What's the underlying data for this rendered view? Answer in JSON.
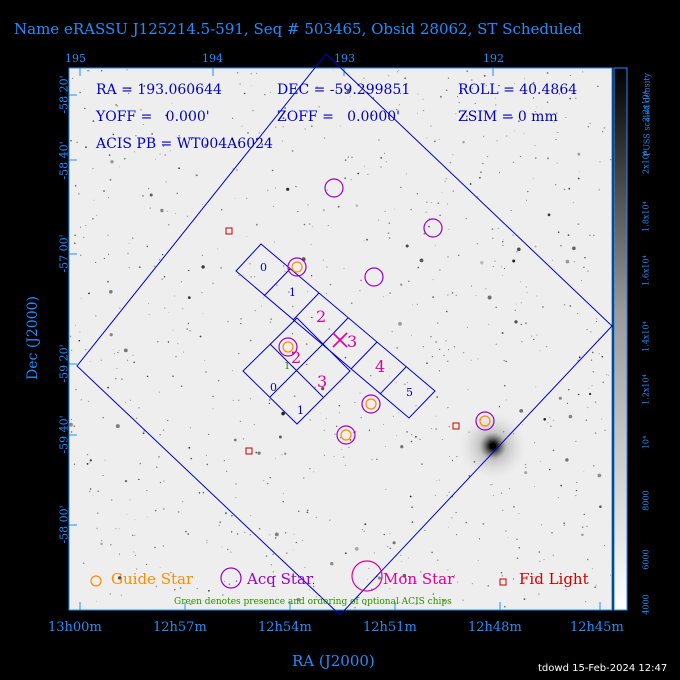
{
  "title": "Name eRASSU J125214.5-591, Seq # 503465, Obsid 28062, ST Scheduled",
  "info": {
    "ra": "RA = 193.060644",
    "dec": "DEC = -59.299851",
    "roll": "ROLL = 40.4864",
    "yoff": "YOFF =   0.000'",
    "zoff": "ZOFF =   0.0000'",
    "zsim": "ZSIM = 0 mm",
    "acis_pb": "ACIS PB = WT004A6024"
  },
  "top_axis": {
    "ticks": [
      "195",
      "194",
      "193",
      "192"
    ]
  },
  "bottom_axis": {
    "label": "RA (J2000)",
    "ticks": [
      "13h00m",
      "12h57m",
      "12h54m",
      "12h51m",
      "12h48m",
      "12h45m"
    ]
  },
  "left_axis": {
    "label": "Dec (J2000)",
    "ticks": [
      "-58 20'",
      "-58 40'",
      "-57 00'",
      "-59 20'",
      "-59 40'",
      "-58 00'"
    ]
  },
  "colorbar": {
    "label": "PUSS scaled density",
    "ticks": [
      "4000",
      "6000",
      "8000",
      "10⁴",
      "1.2x10⁴",
      "1.4x10⁴",
      "1.6x10⁴",
      "1.8x10⁴",
      "2x10⁴",
      "2.2x10⁴"
    ]
  },
  "chips": {
    "row1": [
      "0",
      "1",
      "2",
      "3",
      "4",
      "5"
    ],
    "row2": [
      "2",
      "3",
      "0",
      "1"
    ],
    "optional": [
      "1"
    ]
  },
  "legend": {
    "guide": "Guide Star",
    "acq": "Acq Star",
    "mon": "Mon Star",
    "fid": "Fid Light",
    "note": "Green denotes presence and ordering of optional ACIS chips"
  },
  "footer": "tdowd 15-Feb-2024 12:47",
  "colors": {
    "blue": "#0000cc",
    "axis_blue": "#1e8fff",
    "magenta": "#e0009a",
    "purple": "#9a00cc",
    "orange": "#ff8c00",
    "red": "#cc0000",
    "green": "#2e8b00"
  }
}
